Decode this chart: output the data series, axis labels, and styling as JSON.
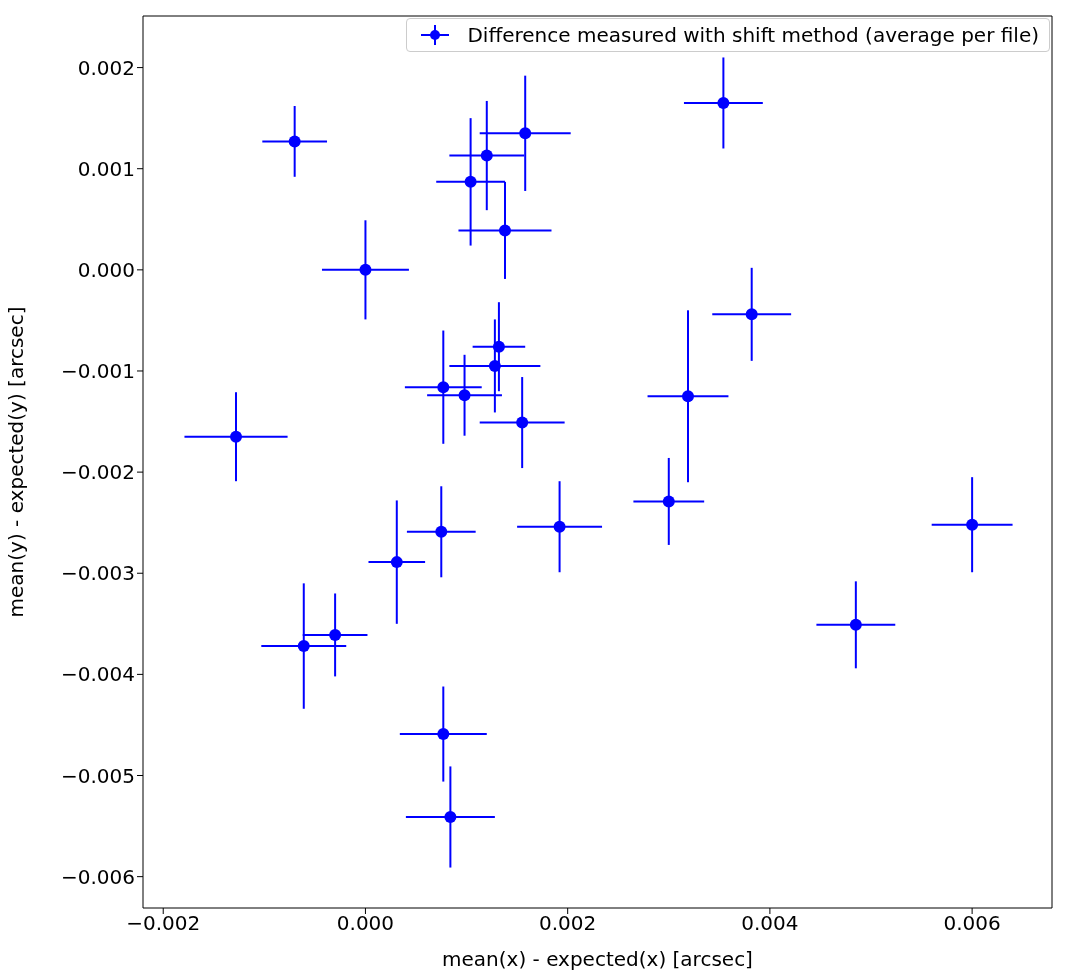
{
  "chart_data": {
    "type": "scatter",
    "xlabel": "mean(x) - expected(x)  [arcsec]",
    "ylabel": "mean(y) - expected(y)  [arcsec]",
    "xlim": [
      -0.0022,
      0.00679
    ],
    "ylim": [
      -0.00631,
      0.00251
    ],
    "xticks": [
      {
        "value": -0.002,
        "label": "−0.002"
      },
      {
        "value": 0,
        "label": "0.000"
      },
      {
        "value": 0.002,
        "label": "0.002"
      },
      {
        "value": 0.004,
        "label": "0.004"
      },
      {
        "value": 0.006,
        "label": "0.006"
      }
    ],
    "yticks": [
      {
        "value": -0.006,
        "label": "−0.006"
      },
      {
        "value": -0.005,
        "label": "−0.005"
      },
      {
        "value": -0.004,
        "label": "−0.004"
      },
      {
        "value": -0.003,
        "label": "−0.003"
      },
      {
        "value": -0.002,
        "label": "−0.002"
      },
      {
        "value": -0.001,
        "label": "−0.001"
      },
      {
        "value": 0,
        "label": "0.000"
      },
      {
        "value": 0.001,
        "label": "0.001"
      },
      {
        "value": 0.002,
        "label": "0.002"
      }
    ],
    "grid": false,
    "legend": "top right",
    "marker": "circle",
    "series": [
      {
        "name": "Difference measured with shift method (average per file)",
        "color": "#0000ff",
        "x": [
          -0.0007,
          0.0,
          0.00104,
          0.0012,
          0.00158,
          0.00138,
          0.00354,
          0.00382,
          -0.00128,
          0.00077,
          0.00098,
          0.00128,
          0.00132,
          0.00155,
          0.00319,
          0.00075,
          0.00192,
          0.003,
          0.006,
          0.00031,
          -0.0003,
          -0.00061,
          0.00485,
          0.00077,
          0.00084
        ],
        "values": [
          0.00127,
          0.0,
          0.00087,
          0.00113,
          0.00135,
          0.00039,
          0.00165,
          -0.00044,
          -0.00165,
          -0.00116,
          -0.00124,
          -0.00095,
          -0.00076,
          -0.00151,
          -0.00125,
          -0.00259,
          -0.00254,
          -0.00229,
          -0.00252,
          -0.00289,
          -0.00361,
          -0.00372,
          -0.00351,
          -0.00459,
          -0.00541
        ],
        "xerrors": [
          0.00032,
          0.00043,
          0.00034,
          0.00037,
          0.00045,
          0.00046,
          0.00039,
          0.00039,
          0.00051,
          0.00038,
          0.00037,
          0.00045,
          0.00026,
          0.00042,
          0.0004,
          0.00034,
          0.00042,
          0.00035,
          0.0004,
          0.00028,
          0.00032,
          0.00042,
          0.00039,
          0.00043,
          0.00044
        ],
        "errors": [
          0.00035,
          0.00049,
          0.00063,
          0.00054,
          0.00057,
          0.00048,
          0.00045,
          0.00046,
          0.00044,
          0.00056,
          0.0004,
          0.00046,
          0.00044,
          0.00045,
          0.00085,
          0.00045,
          0.00045,
          0.00043,
          0.00047,
          0.00061,
          0.00041,
          0.00062,
          0.00043,
          0.00047,
          0.0005
        ]
      }
    ]
  }
}
